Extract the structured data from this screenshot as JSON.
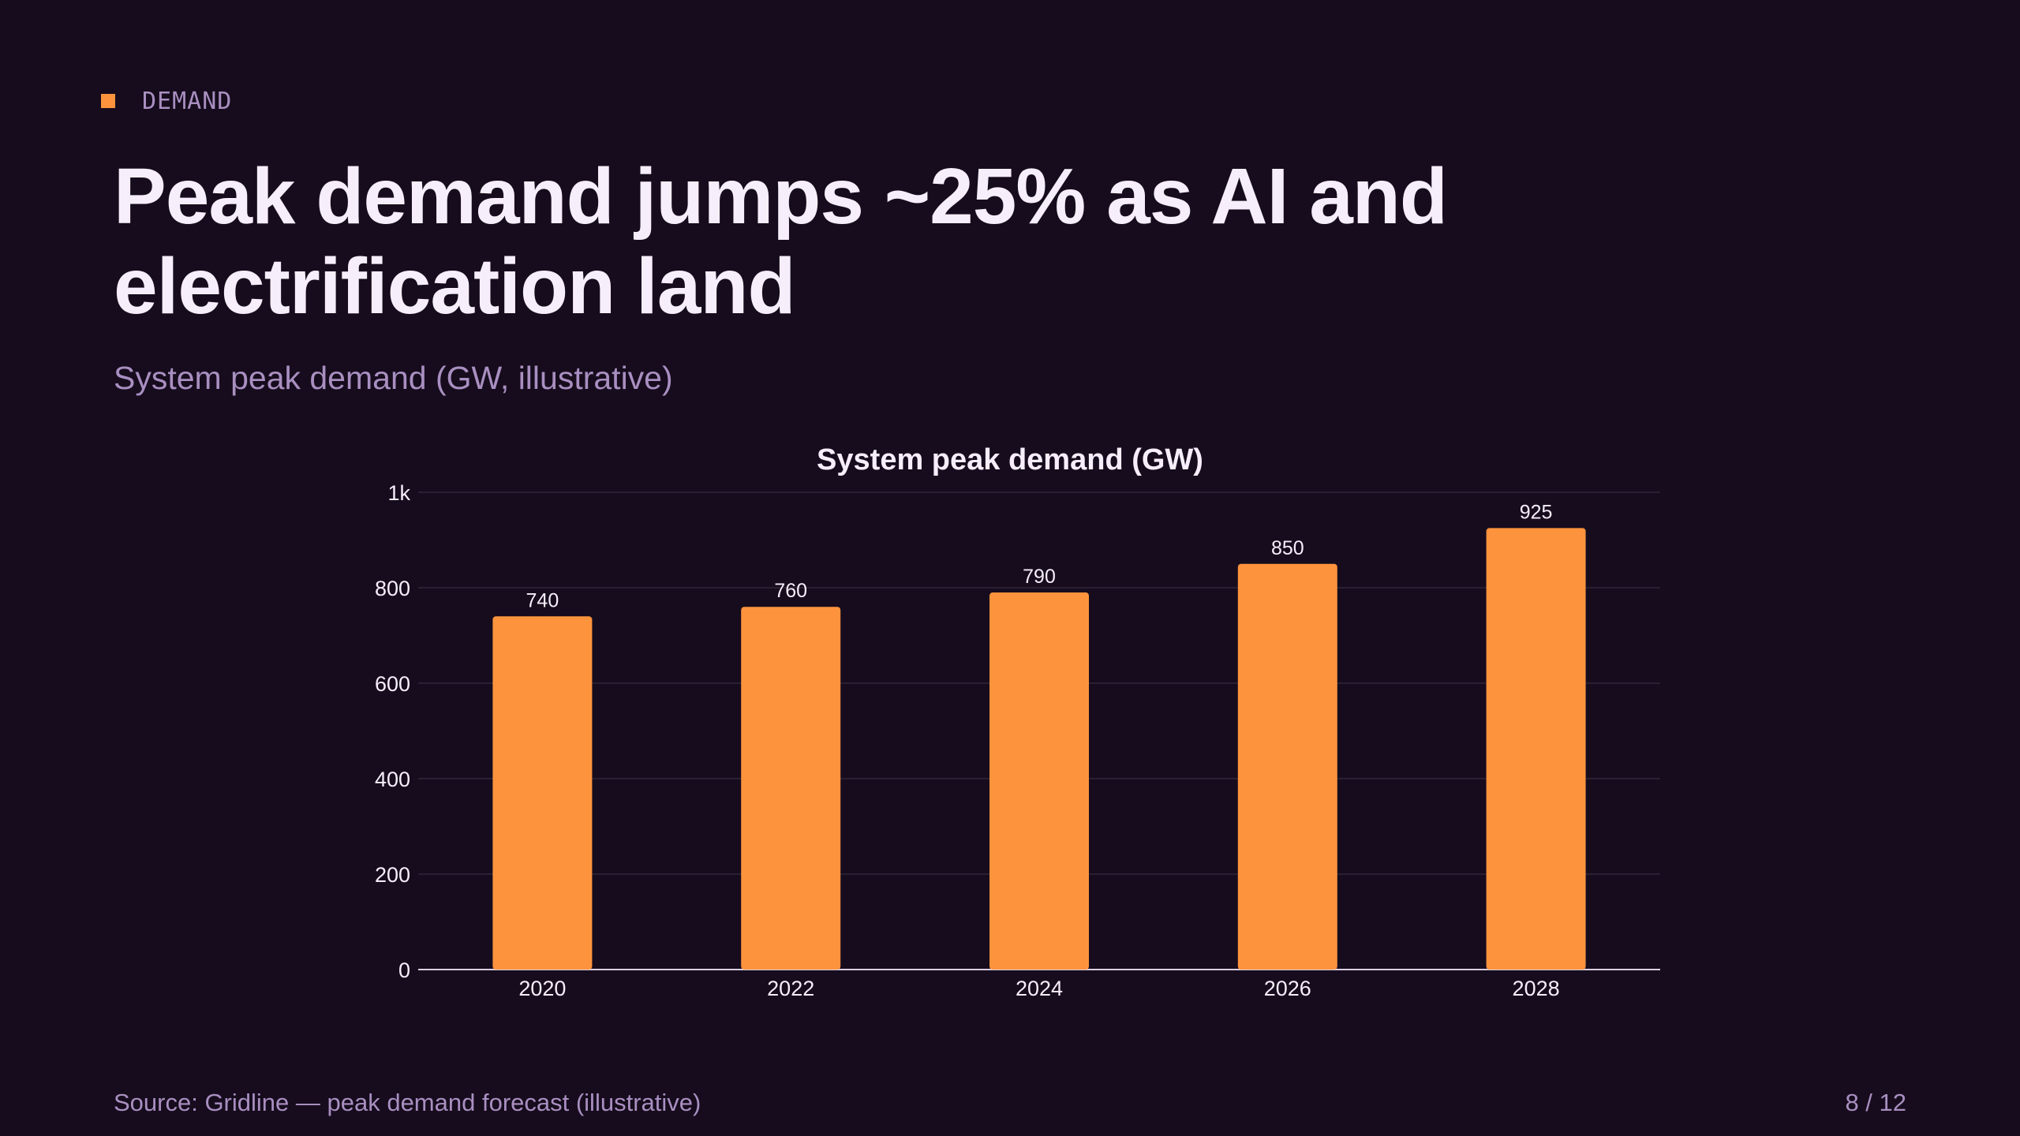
{
  "slide": {
    "eyebrow": "DEMAND",
    "title": "Peak demand jumps ~25% as AI and electrification land",
    "subtitle": "System peak demand (GW, illustrative)",
    "source": "Source: Gridline — peak demand forecast (illustrative)",
    "page": "8 / 12"
  },
  "colors": {
    "background": "#160c1d",
    "accent": "#fd933d",
    "text": "#f6eefa",
    "muted": "#a98fc1",
    "grid": "#2a1f33"
  },
  "chart_data": {
    "type": "bar",
    "title": "System peak demand (GW)",
    "xlabel": "",
    "ylabel": "",
    "categories": [
      "2020",
      "2022",
      "2024",
      "2026",
      "2028"
    ],
    "values": [
      740,
      760,
      790,
      850,
      925
    ],
    "data_labels": [
      "740",
      "760",
      "790",
      "850",
      "925"
    ],
    "ylim": [
      0,
      1000
    ],
    "yticks": [
      0,
      200,
      400,
      600,
      800,
      1000
    ],
    "ytick_labels": [
      "0",
      "200",
      "400",
      "600",
      "800",
      "1k"
    ],
    "grid": true,
    "legend": "none"
  }
}
